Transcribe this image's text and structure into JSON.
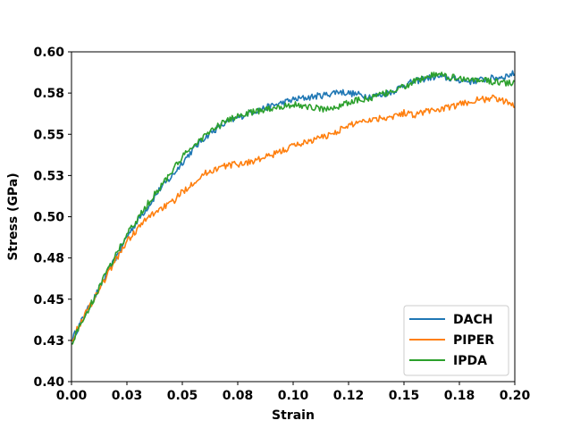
{
  "chart_data": {
    "type": "line",
    "title": "",
    "xlabel": "Strain",
    "ylabel": "Stress (GPa)",
    "xlim": [
      0.0,
      0.2
    ],
    "ylim": [
      0.4,
      0.6
    ],
    "xticks": [
      0.0,
      0.025,
      0.05,
      0.075,
      0.1,
      0.125,
      0.15,
      0.175,
      0.2
    ],
    "xtick_labels": [
      "0.00",
      "0.03",
      "0.05",
      "0.08",
      "0.10",
      "0.12",
      "0.15",
      "0.18",
      "0.20"
    ],
    "yticks": [
      0.4,
      0.425,
      0.45,
      0.475,
      0.5,
      0.525,
      0.55,
      0.575,
      0.6
    ],
    "ytick_labels": [
      "0.40",
      "0.43",
      "0.45",
      "0.48",
      "0.50",
      "0.53",
      "0.55",
      "0.58",
      "0.60"
    ],
    "grid": false,
    "legend": {
      "position": "lower-right"
    },
    "x": [
      0.0,
      0.005,
      0.01,
      0.015,
      0.02,
      0.025,
      0.03,
      0.035,
      0.04,
      0.045,
      0.05,
      0.055,
      0.06,
      0.065,
      0.07,
      0.075,
      0.08,
      0.085,
      0.09,
      0.095,
      0.1,
      0.105,
      0.11,
      0.115,
      0.12,
      0.125,
      0.13,
      0.135,
      0.14,
      0.145,
      0.15,
      0.155,
      0.16,
      0.165,
      0.17,
      0.175,
      0.18,
      0.185,
      0.19,
      0.195,
      0.2
    ],
    "series": [
      {
        "name": "DACH",
        "color": "#1f77b4",
        "values": [
          0.425,
          0.438,
          0.45,
          0.463,
          0.475,
          0.488,
          0.498,
          0.507,
          0.517,
          0.524,
          0.533,
          0.541,
          0.548,
          0.553,
          0.557,
          0.56,
          0.563,
          0.565,
          0.567,
          0.569,
          0.571,
          0.572,
          0.573,
          0.574,
          0.576,
          0.575,
          0.574,
          0.573,
          0.574,
          0.576,
          0.58,
          0.582,
          0.584,
          0.585,
          0.584,
          0.583,
          0.582,
          0.583,
          0.584,
          0.585,
          0.587
        ]
      },
      {
        "name": "PIPER",
        "color": "#ff7f0e",
        "values": [
          0.425,
          0.438,
          0.45,
          0.462,
          0.474,
          0.485,
          0.493,
          0.5,
          0.505,
          0.508,
          0.515,
          0.521,
          0.526,
          0.529,
          0.531,
          0.532,
          0.533,
          0.535,
          0.537,
          0.54,
          0.543,
          0.545,
          0.547,
          0.549,
          0.552,
          0.555,
          0.558,
          0.559,
          0.56,
          0.561,
          0.563,
          0.562,
          0.564,
          0.565,
          0.566,
          0.568,
          0.57,
          0.571,
          0.572,
          0.57,
          0.568
        ]
      },
      {
        "name": "IPDA",
        "color": "#2ca02c",
        "values": [
          0.423,
          0.437,
          0.45,
          0.464,
          0.477,
          0.489,
          0.499,
          0.509,
          0.518,
          0.527,
          0.536,
          0.543,
          0.549,
          0.554,
          0.558,
          0.561,
          0.563,
          0.564,
          0.566,
          0.567,
          0.568,
          0.567,
          0.566,
          0.565,
          0.567,
          0.569,
          0.571,
          0.572,
          0.574,
          0.576,
          0.579,
          0.582,
          0.585,
          0.586,
          0.585,
          0.584,
          0.583,
          0.583,
          0.582,
          0.581,
          0.581
        ]
      }
    ]
  }
}
